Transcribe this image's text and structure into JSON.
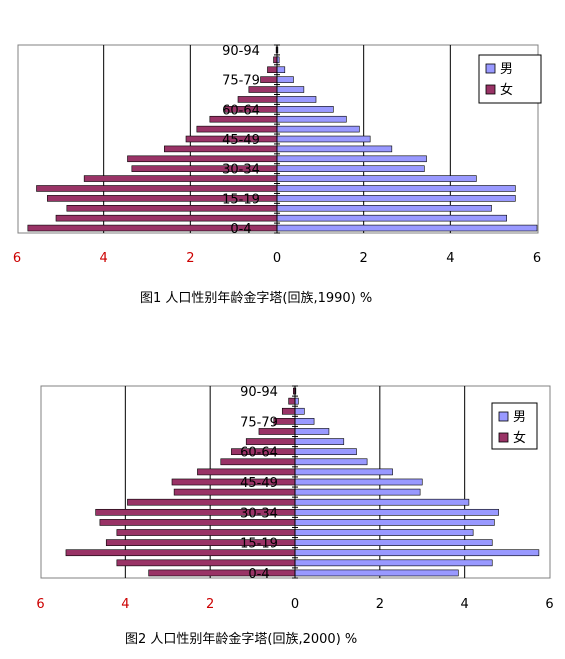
{
  "chart_data": [
    {
      "type": "bar",
      "title": "图1  人口性别年龄金字塔(回族,1990)    %",
      "age_labels_shown": [
        "90-94",
        "75-79",
        "60-64",
        "45-49",
        "30-34",
        "15-19",
        "0-4"
      ],
      "x_ticks_left": [
        "6",
        "4",
        "2"
      ],
      "x_ticks_right": [
        "0",
        "2",
        "4",
        "6"
      ],
      "xlim": [
        -6,
        6
      ],
      "grid": true,
      "legend_position": "top-right",
      "series": [
        {
          "name": "男",
          "color": "#9999ff",
          "values": [
            6.0,
            5.3,
            4.95,
            5.5,
            5.5,
            4.6,
            3.4,
            3.45,
            2.65,
            2.15,
            1.9,
            1.6,
            1.3,
            0.9,
            0.62,
            0.38,
            0.18,
            0.05,
            0.02
          ]
        },
        {
          "name": "女",
          "color": "#993366",
          "values": [
            5.75,
            5.1,
            4.85,
            5.3,
            5.55,
            4.45,
            3.35,
            3.45,
            2.6,
            2.1,
            1.85,
            1.55,
            1.2,
            0.9,
            0.65,
            0.38,
            0.22,
            0.08,
            0.02
          ]
        }
      ]
    },
    {
      "type": "bar",
      "title": "图2  人口性别年龄金字塔(回族,2000)    %",
      "age_labels_shown": [
        "90-94",
        "75-79",
        "60-64",
        "45-49",
        "30-34",
        "15-19",
        "0-4"
      ],
      "x_ticks_left": [
        "6",
        "4",
        "2"
      ],
      "x_ticks_right": [
        "0",
        "2",
        "4",
        "6"
      ],
      "xlim": [
        -6,
        6
      ],
      "grid": true,
      "legend_position": "top-right",
      "series": [
        {
          "name": "男",
          "color": "#9999ff",
          "values": [
            3.85,
            4.65,
            5.75,
            4.65,
            4.2,
            4.7,
            4.8,
            4.1,
            2.95,
            3.0,
            2.3,
            1.7,
            1.45,
            1.15,
            0.8,
            0.45,
            0.22,
            0.08,
            0.02
          ]
        },
        {
          "name": "女",
          "color": "#993366",
          "values": [
            3.45,
            4.2,
            5.4,
            4.45,
            4.2,
            4.6,
            4.7,
            3.95,
            2.85,
            2.9,
            2.3,
            1.75,
            1.5,
            1.15,
            0.85,
            0.5,
            0.3,
            0.15,
            0.04
          ]
        }
      ]
    }
  ]
}
